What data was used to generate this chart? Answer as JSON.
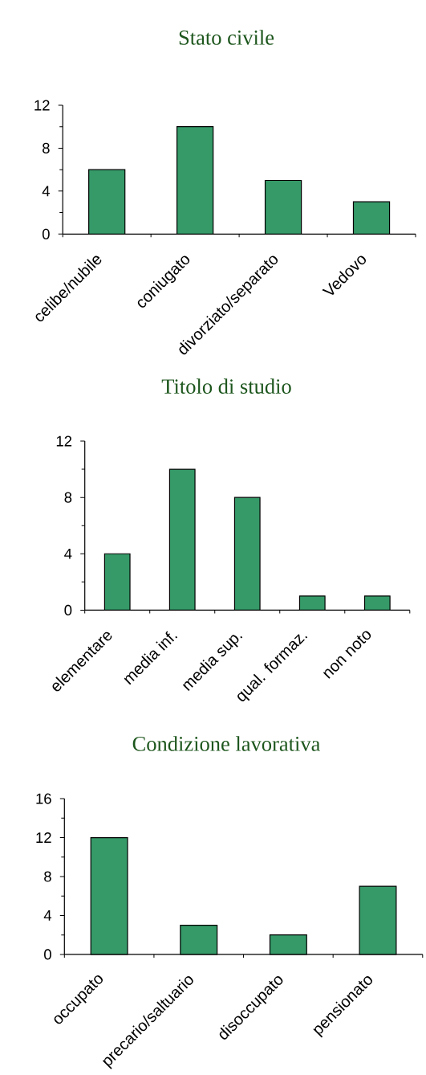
{
  "chart_data": [
    {
      "type": "bar",
      "title": "Stato civile",
      "categories": [
        "celibe/nubile",
        "coniugato",
        "divorziato/separato",
        "Vedovo"
      ],
      "values": [
        6,
        10,
        5,
        3
      ],
      "color": "#359a68",
      "ylim": [
        0,
        12
      ],
      "yticks": [
        0,
        {
          "value": 2,
          "label": null
        },
        4,
        {
          "value": 6,
          "label": null
        },
        8,
        {
          "value": 10,
          "label": null
        },
        12
      ]
    },
    {
      "type": "bar",
      "title": "Titolo di studio",
      "categories": [
        "elementare",
        "media inf.",
        "media sup.",
        "qual. formaz.",
        "non noto"
      ],
      "values": [
        4,
        10,
        8,
        1,
        1
      ],
      "color": "#359a68",
      "ylim": [
        0,
        12
      ],
      "yticks": [
        0,
        {
          "value": 2,
          "label": null
        },
        4,
        {
          "value": 6,
          "label": null
        },
        8,
        {
          "value": 10,
          "label": null
        },
        12
      ]
    },
    {
      "type": "bar",
      "title": "Condizione lavorativa",
      "categories": [
        "occupato",
        "precario/saltuario",
        "disoccupato",
        "pensionato"
      ],
      "values": [
        12,
        3,
        2,
        7
      ],
      "color": "#359a68",
      "ylim": [
        0,
        16
      ],
      "yticks": [
        0,
        {
          "value": 2,
          "label": null
        },
        4,
        {
          "value": 6,
          "label": null
        },
        8,
        {
          "value": 10,
          "label": null
        },
        12,
        {
          "value": 14,
          "label": null
        },
        16
      ]
    }
  ]
}
